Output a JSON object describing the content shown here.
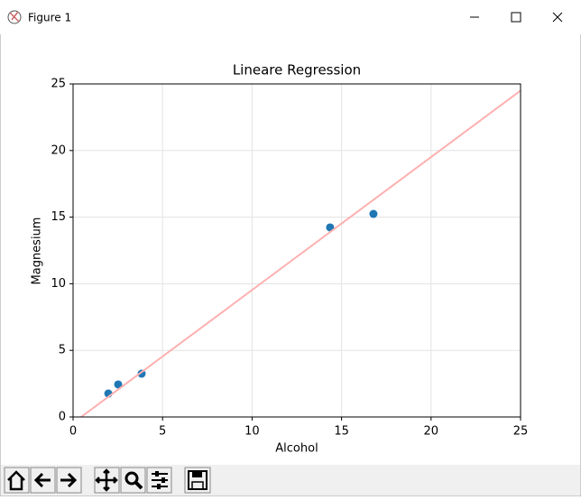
{
  "window": {
    "title": "Figure 1"
  },
  "chart_data": {
    "type": "scatter",
    "title": "Lineare Regression",
    "x_label": "Alcohol",
    "y_label": "Magnesium",
    "xlim": [
      0,
      25
    ],
    "ylim": [
      0,
      25
    ],
    "xticks": [
      0,
      5,
      10,
      15,
      20,
      25
    ],
    "yticks": [
      0,
      5,
      10,
      15,
      20,
      25
    ],
    "grid": true,
    "series": [
      {
        "mode": "markers",
        "color": "#1f77b4",
        "x": [
          1.97,
          2.52,
          3.83,
          14.36,
          16.78
        ],
        "values": [
          1.76,
          2.44,
          3.25,
          14.23,
          15.24
        ]
      },
      {
        "mode": "line",
        "color": "#ffb0b0",
        "x": [
          0.45,
          25
        ],
        "values": [
          0,
          24.5
        ]
      }
    ]
  }
}
